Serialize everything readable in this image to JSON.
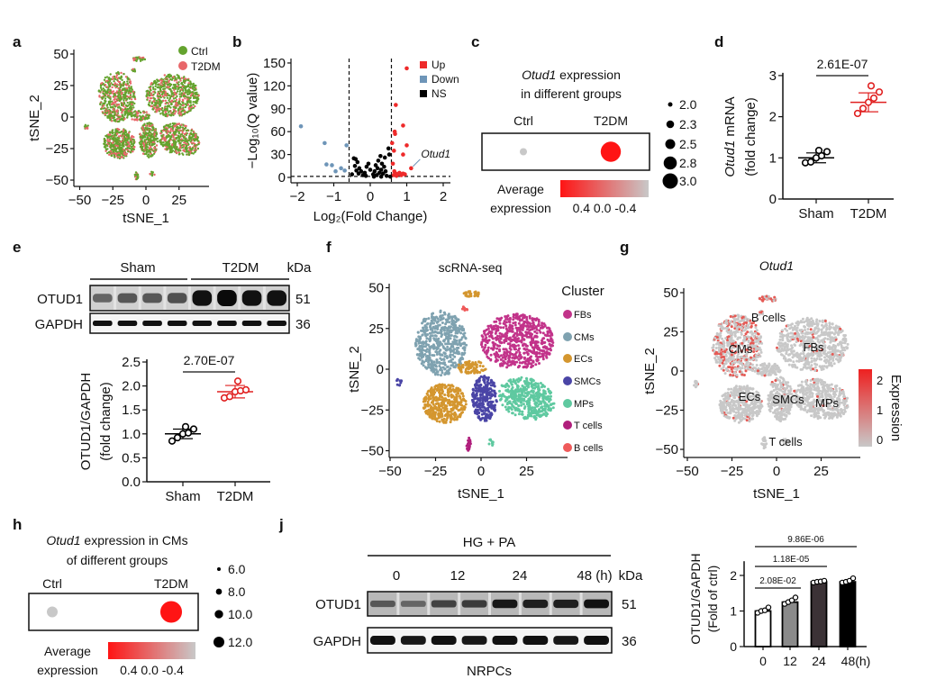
{
  "panel_labels": [
    "a",
    "b",
    "c",
    "d",
    "e",
    "f",
    "g",
    "h",
    "j"
  ],
  "chart_data": [
    {
      "id": "a",
      "type": "scatter",
      "xlabel": "tSNE_1",
      "ylabel": "tSNE_2",
      "xticks": [
        "−50",
        "−25",
        "0",
        "25"
      ],
      "xtick_values": [
        -50,
        -25,
        0,
        25
      ],
      "yticks": [
        "50",
        "25",
        "0",
        "−25",
        "−50"
      ],
      "ytick_values": [
        50,
        25,
        0,
        -25,
        -50
      ],
      "legend": [
        {
          "name": "Ctrl",
          "color": "#64a32e"
        },
        {
          "name": "T2DM",
          "color": "#e8676a"
        }
      ],
      "legend_position": "top-right"
    },
    {
      "id": "b",
      "type": "scatter",
      "xlabel": "Log₂(Fold Change)",
      "ylabel": "−Log₁₀(Q value)",
      "xticks": [
        "−2",
        "−1",
        "0",
        "1",
        "2"
      ],
      "xtick_values": [
        -2,
        -1,
        0,
        1,
        2
      ],
      "yticks": [
        "150",
        "120",
        "90",
        "60",
        "30",
        "0"
      ],
      "ytick_values": [
        150,
        120,
        90,
        60,
        30,
        0
      ],
      "xlim": [
        -2.2,
        2.2
      ],
      "ylim": [
        0,
        155
      ],
      "thresholds": {
        "x": [
          -0.58,
          0.58
        ],
        "y": 1.3
      },
      "legend": [
        {
          "name": "Up",
          "color": "#ee2a2a"
        },
        {
          "name": "Down",
          "color": "#6e95b8"
        },
        {
          "name": "NS",
          "color": "#000000"
        }
      ],
      "legend_position": "top-right",
      "annotation": "Otud1",
      "annotation_point": [
        1.12,
        12
      ],
      "series": [
        {
          "name": "Up",
          "points": [
            [
              1.0,
              143
            ],
            [
              0.7,
              95
            ],
            [
              0.9,
              68
            ],
            [
              0.67,
              60
            ],
            [
              0.68,
              57
            ],
            [
              0.6,
              45
            ],
            [
              1.0,
              42
            ],
            [
              0.65,
              35
            ],
            [
              0.9,
              30
            ],
            [
              1.12,
              12
            ],
            [
              0.62,
              18
            ],
            [
              0.66,
              8
            ],
            [
              0.7,
              5
            ],
            [
              0.75,
              4
            ],
            [
              0.8,
              6
            ],
            [
              0.85,
              3
            ],
            [
              0.9,
              5
            ],
            [
              0.95,
              4
            ],
            [
              0.64,
              3
            ],
            [
              0.72,
              2
            ]
          ]
        },
        {
          "name": "Down",
          "points": [
            [
              -1.9,
              67
            ],
            [
              -1.25,
              45
            ],
            [
              -0.65,
              42
            ],
            [
              -1.2,
              17
            ],
            [
              -1.05,
              16
            ],
            [
              -0.95,
              8
            ],
            [
              -0.8,
              12
            ],
            [
              -0.7,
              9
            ]
          ]
        },
        {
          "name": "NS",
          "points": [
            [
              -0.45,
              25
            ],
            [
              -0.4,
              24
            ],
            [
              -0.35,
              20
            ],
            [
              -0.42,
              15
            ],
            [
              -0.3,
              12
            ],
            [
              -0.38,
              9
            ],
            [
              -0.25,
              8
            ],
            [
              -0.32,
              5
            ],
            [
              -0.2,
              3
            ],
            [
              -0.15,
              6
            ],
            [
              -0.1,
              14
            ],
            [
              -0.05,
              18
            ],
            [
              -0.12,
              2
            ],
            [
              0.0,
              10
            ],
            [
              0.08,
              4
            ],
            [
              0.12,
              8
            ],
            [
              0.15,
              16
            ],
            [
              0.18,
              3
            ],
            [
              0.2,
              12
            ],
            [
              0.22,
              22
            ],
            [
              0.25,
              6
            ],
            [
              0.28,
              28
            ],
            [
              0.3,
              10
            ],
            [
              0.32,
              18
            ],
            [
              0.35,
              5
            ],
            [
              0.38,
              14
            ],
            [
              0.4,
              26
            ],
            [
              0.45,
              2
            ],
            [
              0.5,
              38
            ],
            [
              0.52,
              30
            ],
            [
              0.55,
              1
            ],
            [
              -0.5,
              4
            ],
            [
              0.1,
              1
            ],
            [
              0.3,
              1
            ],
            [
              0.42,
              8
            ]
          ]
        }
      ]
    },
    {
      "id": "c",
      "type": "dotplot",
      "title_gene": "Otud1",
      "title_rest": " expression",
      "title_line2": "in different groups",
      "groups": [
        "Ctrl",
        "T2DM"
      ],
      "avg_expression": [
        -0.4,
        0.4
      ],
      "dot_size": [
        2.0,
        3.0
      ],
      "size_legend": [
        "2.0",
        "2.3",
        "2.5",
        "2.8",
        "3.0"
      ],
      "size_legend_values": [
        2.0,
        2.3,
        2.5,
        2.8,
        3.0
      ],
      "colorbar_label": [
        "Average",
        "expression"
      ],
      "colorbar_ticks": "0.4 0.0 -0.4",
      "colorbar_colors": [
        "#ff1414",
        "#c8c8c8"
      ]
    },
    {
      "id": "d",
      "type": "scatter-dot",
      "ylabel_gene": "Otud1",
      "ylabel_rest": " mRNA",
      "ylabel_line2": "(fold change)",
      "categories": [
        "Sham",
        "T2DM"
      ],
      "yticks": [
        "0",
        "1",
        "2",
        "3"
      ],
      "ytick_values": [
        0,
        1,
        2,
        3
      ],
      "ylim": [
        0,
        3
      ],
      "series": [
        {
          "category": "Sham",
          "color": "#000000",
          "values": [
            0.88,
            0.9,
            1.0,
            1.05,
            1.15,
            1.18
          ],
          "mean": 1.0,
          "sd": 0.12
        },
        {
          "category": "T2DM",
          "color": "#e02020",
          "values": [
            2.08,
            2.2,
            2.35,
            2.45,
            2.6,
            2.75
          ],
          "mean": 2.35,
          "sd": 0.23
        }
      ],
      "pvalue": "2.61E-07"
    },
    {
      "id": "e",
      "type": "blot+scatter-dot",
      "blot": {
        "groups": [
          "Sham",
          "T2DM"
        ],
        "kda_label": "kDa",
        "rows": [
          {
            "name": "OTUD1",
            "kda": "51"
          },
          {
            "name": "GAPDH",
            "kda": "36"
          }
        ],
        "lanes_per_group": 4
      },
      "ylabel": "OTUD1/GAPDH",
      "ylabel_line2": "(fold change)",
      "categories": [
        "Sham",
        "T2DM"
      ],
      "yticks": [
        "2.5",
        "2.0",
        "1.5",
        "1.0",
        "0.5",
        "0.0"
      ],
      "ytick_values": [
        2.5,
        2.0,
        1.5,
        1.0,
        0.5,
        0.0
      ],
      "ylim": [
        0,
        2.5
      ],
      "series": [
        {
          "category": "Sham",
          "color": "#000000",
          "values": [
            0.85,
            0.92,
            1.0,
            1.02,
            1.1,
            1.15
          ],
          "mean": 1.0,
          "sd": 0.1
        },
        {
          "category": "T2DM",
          "color": "#e02020",
          "values": [
            1.75,
            1.78,
            1.88,
            1.9,
            1.92,
            2.1
          ],
          "mean": 1.88,
          "sd": 0.13
        }
      ],
      "pvalue": "2.70E-07"
    },
    {
      "id": "f",
      "type": "scatter",
      "title": "scRNA-seq",
      "xlabel": "tSNE_1",
      "ylabel": "tSNE_2",
      "xticks": [
        "−50",
        "−25",
        "0",
        "25"
      ],
      "xtick_values": [
        -50,
        -25,
        0,
        25
      ],
      "yticks": [
        "50",
        "25",
        "0",
        "−25",
        "−50"
      ],
      "ytick_values": [
        50,
        25,
        0,
        -25,
        -50
      ],
      "legend_title": "Cluster",
      "legend": [
        {
          "name": "FBs",
          "color": "#c2338a"
        },
        {
          "name": "CMs",
          "color": "#7fa2b0"
        },
        {
          "name": "ECs",
          "color": "#d4962f"
        },
        {
          "name": "SMCs",
          "color": "#4a45a6"
        },
        {
          "name": "MPs",
          "color": "#5fc9a0"
        },
        {
          "name": "T cells",
          "color": "#b01f7c"
        },
        {
          "name": "B cells",
          "color": "#ef5a5a"
        }
      ],
      "legend_position": "right"
    },
    {
      "id": "g",
      "type": "scatter",
      "title": "Otud1",
      "xlabel": "tSNE_1",
      "ylabel": "tSNE_2",
      "xticks": [
        "−50",
        "−25",
        "0",
        "25"
      ],
      "xtick_values": [
        -50,
        -25,
        0,
        25
      ],
      "yticks": [
        "50",
        "25",
        "0",
        "−25",
        "−50"
      ],
      "ytick_values": [
        50,
        25,
        0,
        -25,
        -50
      ],
      "colorbar_title": "Expression",
      "colorbar_ticks": [
        "2",
        "1",
        "0"
      ],
      "colorbar_tick_values": [
        2,
        1,
        0
      ],
      "colorbar_colors": [
        "#c8c8c8",
        "#ee2020"
      ],
      "cluster_labels": [
        "B cells",
        "CMs",
        "FBs",
        "ECs",
        "SMCs",
        "MPs",
        "T cells"
      ]
    },
    {
      "id": "h",
      "type": "dotplot",
      "title_gene": "Otud1",
      "title_rest": " expression in CMs",
      "title_line2": "of different groups",
      "groups": [
        "Ctrl",
        "T2DM"
      ],
      "avg_expression": [
        -0.4,
        0.4
      ],
      "dot_size": [
        6.0,
        12.0
      ],
      "size_legend": [
        "6.0",
        "8.0",
        "10.0",
        "12.0"
      ],
      "size_legend_values": [
        6.0,
        8.0,
        10.0,
        12.0
      ],
      "colorbar_label": [
        "Average",
        "expression"
      ],
      "colorbar_ticks": "0.4 0.0 -0.4",
      "colorbar_colors": [
        "#ff1414",
        "#c8c8c8"
      ]
    },
    {
      "id": "j",
      "type": "blot+bar",
      "blot": {
        "treatment": "HG + PA",
        "timepoints": [
          "0",
          "12",
          "24",
          "48 (h)"
        ],
        "kda_label": "kDa",
        "rows": [
          {
            "name": "OTUD1",
            "kda": "51"
          },
          {
            "name": "GAPDH",
            "kda": "36"
          }
        ],
        "cell_type": "NRPCs"
      },
      "ylabel": "OTUD1/GAPDH",
      "ylabel_line2": "(Fold of ctrl)",
      "categories": [
        "0",
        "12",
        "24",
        "48(h)"
      ],
      "yticks": [
        "0",
        "1",
        "2"
      ],
      "ytick_values": [
        0,
        1,
        2
      ],
      "ylim": [
        0,
        2.5
      ],
      "values": [
        1.0,
        1.25,
        1.82,
        1.82
      ],
      "bar_colors": [
        "#ffffff",
        "#8a8a8a",
        "#3b3236",
        "#000000"
      ],
      "points": [
        [
          0.95,
          1.0,
          1.02,
          1.1
        ],
        [
          1.2,
          1.25,
          1.3,
          1.38
        ],
        [
          1.8,
          1.82,
          1.83,
          1.85
        ],
        [
          1.8,
          1.82,
          1.85,
          1.92
        ]
      ],
      "comparisons": [
        {
          "from": "0",
          "to": "12",
          "pvalue": "2.08E-02"
        },
        {
          "from": "0",
          "to": "24",
          "pvalue": "1.18E-05"
        },
        {
          "from": "0",
          "to": "48(h)",
          "pvalue": "9.86E-06"
        }
      ]
    }
  ]
}
